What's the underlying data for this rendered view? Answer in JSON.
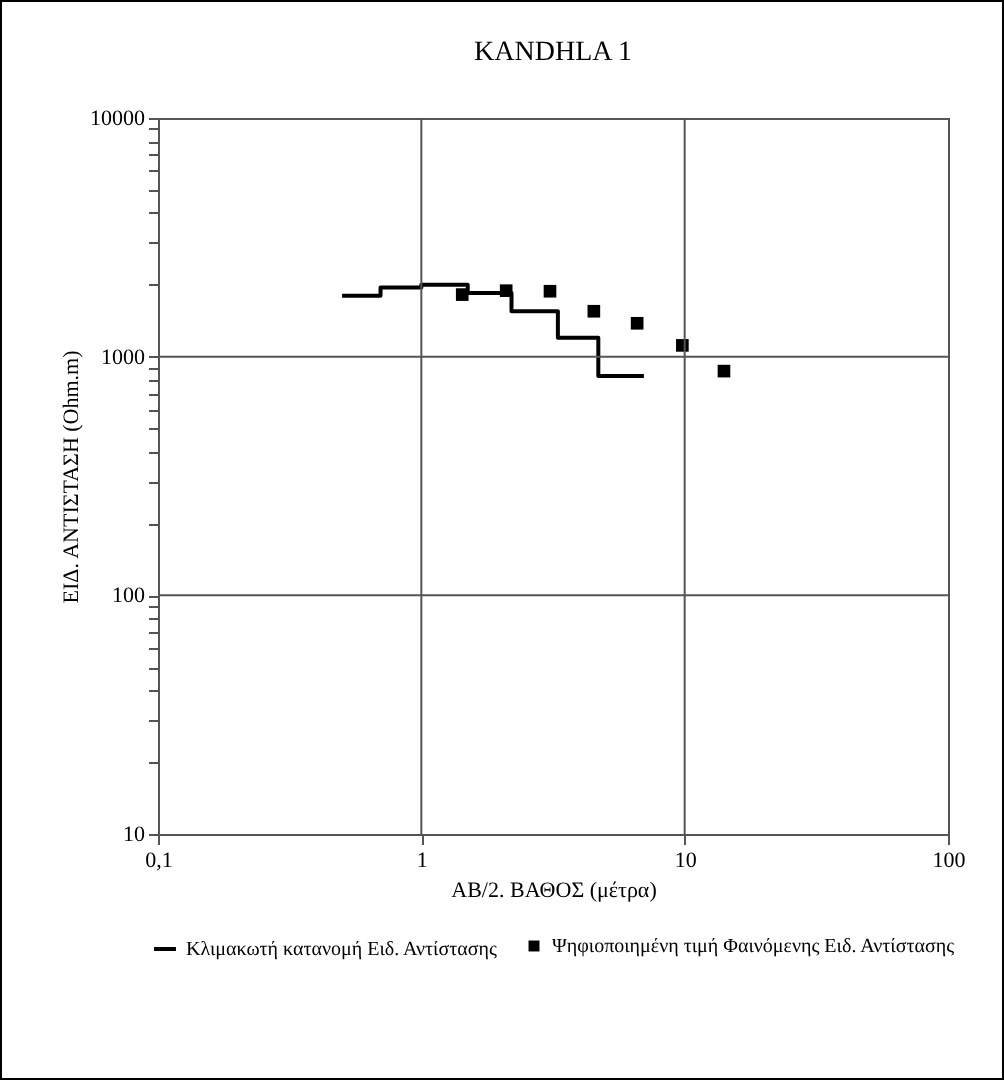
{
  "chart_data": {
    "type": "scatter",
    "title": "KANDHLA 1",
    "xlabel": "ΑΒ/2. ΒΑΘΟΣ (μέτρα)",
    "ylabel": "ΕΙΔ. ΑΝΤΙΣΤΑΣΗ (Ohm.m)",
    "log": "xy",
    "grid": true,
    "legend": "bottom",
    "xlim": [
      0.1,
      100
    ],
    "xticks": [
      {
        "value": 0.1,
        "label": "0,1"
      },
      1,
      10,
      100
    ],
    "ylim": [
      10,
      10000
    ],
    "yticks": [
      10,
      {
        "value": 20,
        "label": null
      },
      {
        "value": 30,
        "label": null
      },
      {
        "value": 40,
        "label": null
      },
      {
        "value": 50,
        "label": null
      },
      {
        "value": 60,
        "label": null
      },
      {
        "value": 70,
        "label": null
      },
      {
        "value": 80,
        "label": null
      },
      {
        "value": 90,
        "label": null
      },
      100,
      {
        "value": 200,
        "label": null
      },
      {
        "value": 300,
        "label": null
      },
      {
        "value": 400,
        "label": null
      },
      {
        "value": 500,
        "label": null
      },
      {
        "value": 600,
        "label": null
      },
      {
        "value": 700,
        "label": null
      },
      {
        "value": 800,
        "label": null
      },
      {
        "value": 900,
        "label": null
      },
      1000,
      {
        "value": 2000,
        "label": null
      },
      {
        "value": 3000,
        "label": null
      },
      {
        "value": 4000,
        "label": null
      },
      {
        "value": 5000,
        "label": null
      },
      {
        "value": 6000,
        "label": null
      },
      {
        "value": 7000,
        "label": null
      },
      {
        "value": 8000,
        "label": null
      },
      {
        "value": 9000,
        "label": null
      },
      10000
    ],
    "series": [
      {
        "name": "Κλιμακωτή κατανομή Ειδ. Αντίστασης",
        "type": "step",
        "color": "#000000",
        "x": [
          0.5,
          0.7,
          1.0,
          1.5,
          2.2,
          3.3,
          4.7,
          7.0
        ],
        "values": [
          1800,
          1950,
          2000,
          1850,
          1550,
          1200,
          830,
          830
        ]
      },
      {
        "name": "Ψηφιοποιημένη τιμή Φαινόμενης Ειδ. Αντίστασης",
        "color": "#000000",
        "marker": "square",
        "x": [
          1.43,
          2.1,
          3.08,
          4.52,
          6.6,
          9.8,
          14.1
        ],
        "values": [
          1820,
          1890,
          1880,
          1550,
          1380,
          1115,
          870
        ]
      }
    ]
  }
}
